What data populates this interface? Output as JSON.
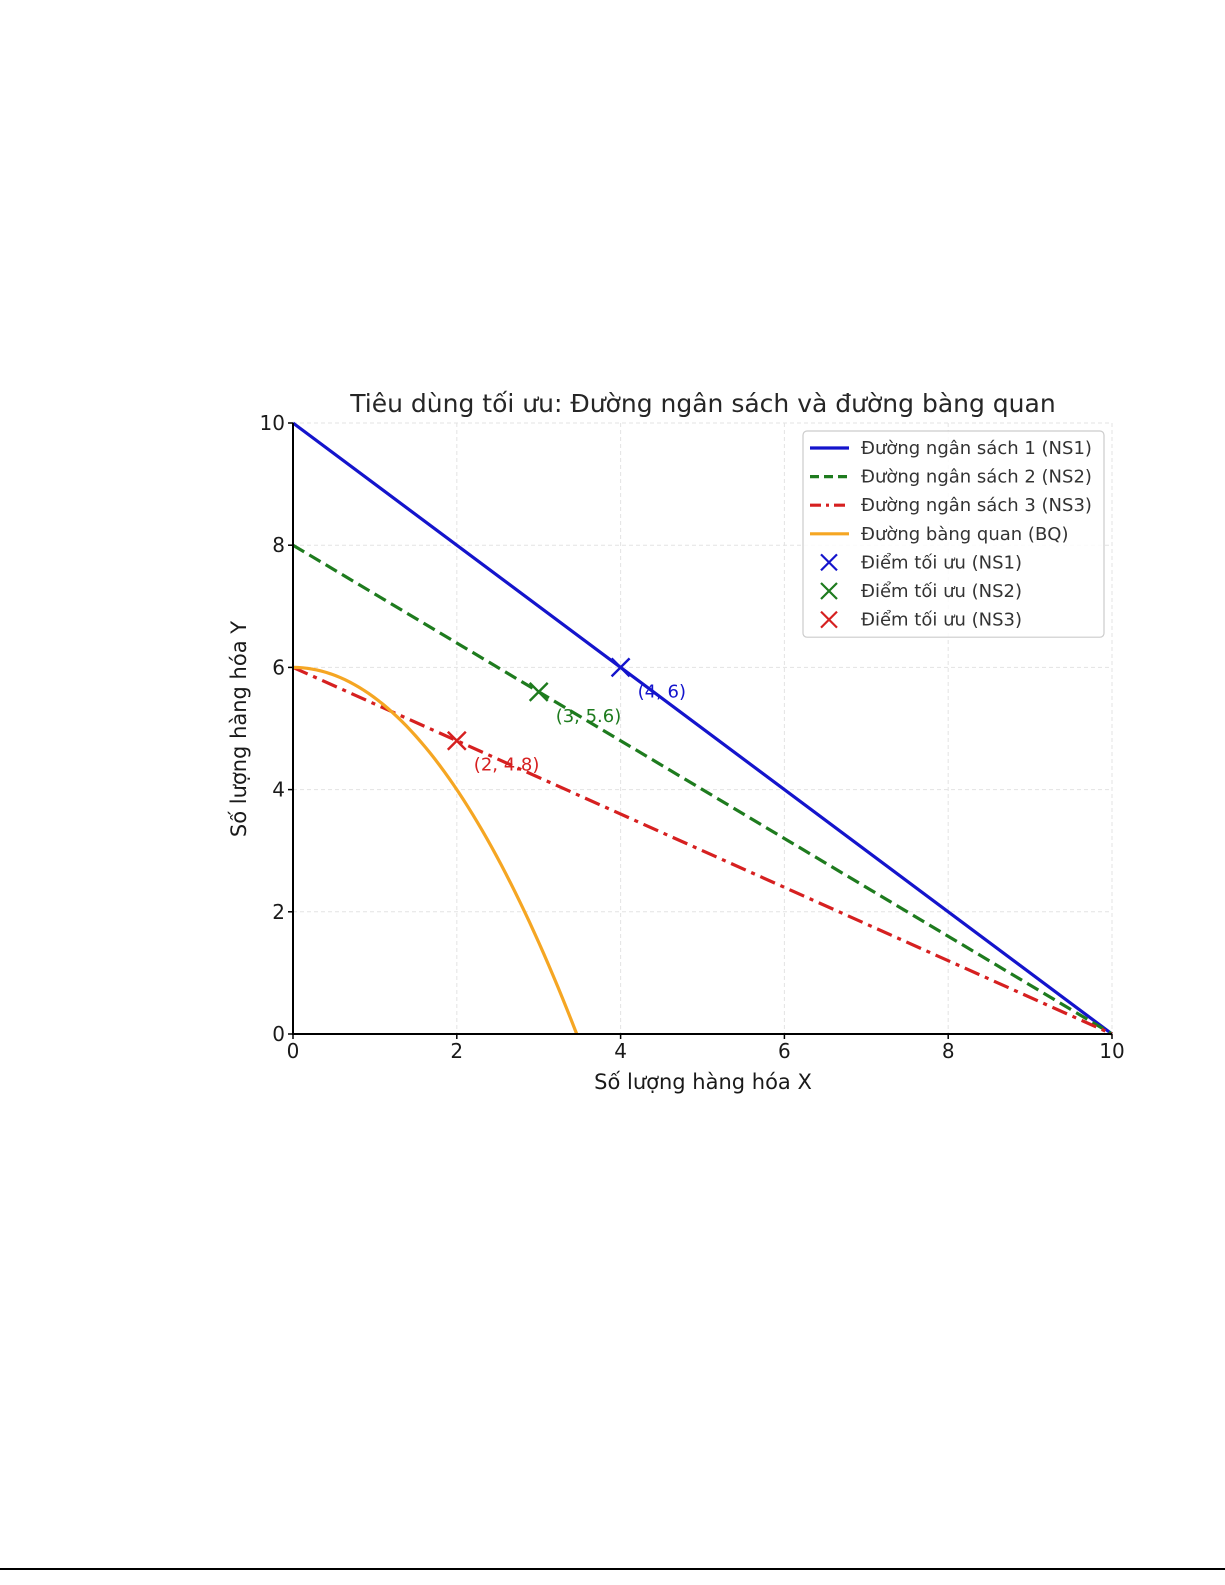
{
  "chart_data": {
    "type": "line",
    "title": "Tiêu dùng tối ưu: Đường ngân sách và đường bàng quan",
    "xlabel": "Số lượng hàng hóa X",
    "ylabel": "Số lượng hàng hóa Y",
    "xlim": [
      0,
      10
    ],
    "ylim": [
      0,
      10
    ],
    "xticks": [
      "0",
      "2",
      "4",
      "6",
      "8",
      "10"
    ],
    "yticks": [
      "0",
      "2",
      "4",
      "6",
      "8",
      "10"
    ],
    "grid": true,
    "legend_position": "top-right",
    "series": [
      {
        "name": "Đường ngân sách 1 (NS1)",
        "style": "solid",
        "color": "#1414cc",
        "x": [
          0,
          10
        ],
        "y": [
          10,
          0
        ]
      },
      {
        "name": "Đường ngân sách 2 (NS2)",
        "style": "dashed",
        "color": "#1e7b1e",
        "x": [
          0,
          10
        ],
        "y": [
          8,
          0
        ]
      },
      {
        "name": "Đường ngân sách 3 (NS3)",
        "style": "dashdot",
        "color": "#d62020",
        "x": [
          0,
          10
        ],
        "y": [
          6,
          0
        ]
      },
      {
        "name": "Đường bàng quan (BQ)",
        "style": "solid",
        "color": "#f5a623",
        "x": [
          0,
          0.5,
          1,
          1.5,
          2,
          2.5,
          3,
          3.46
        ],
        "y": [
          6,
          5.875,
          5.5,
          4.875,
          4,
          2.875,
          1.5,
          0
        ]
      }
    ],
    "points": [
      {
        "name": "Điểm tối ưu (NS1)",
        "x": 4,
        "y": 6,
        "color": "#1414cc",
        "label": "(4, 6)"
      },
      {
        "name": "Điểm tối ưu (NS2)",
        "x": 3,
        "y": 5.6,
        "color": "#1e7b1e",
        "label": "(3, 5.6)"
      },
      {
        "name": "Điểm tối ưu (NS3)",
        "x": 2,
        "y": 4.8,
        "color": "#d62020",
        "label": "(2, 4.8)"
      }
    ]
  }
}
